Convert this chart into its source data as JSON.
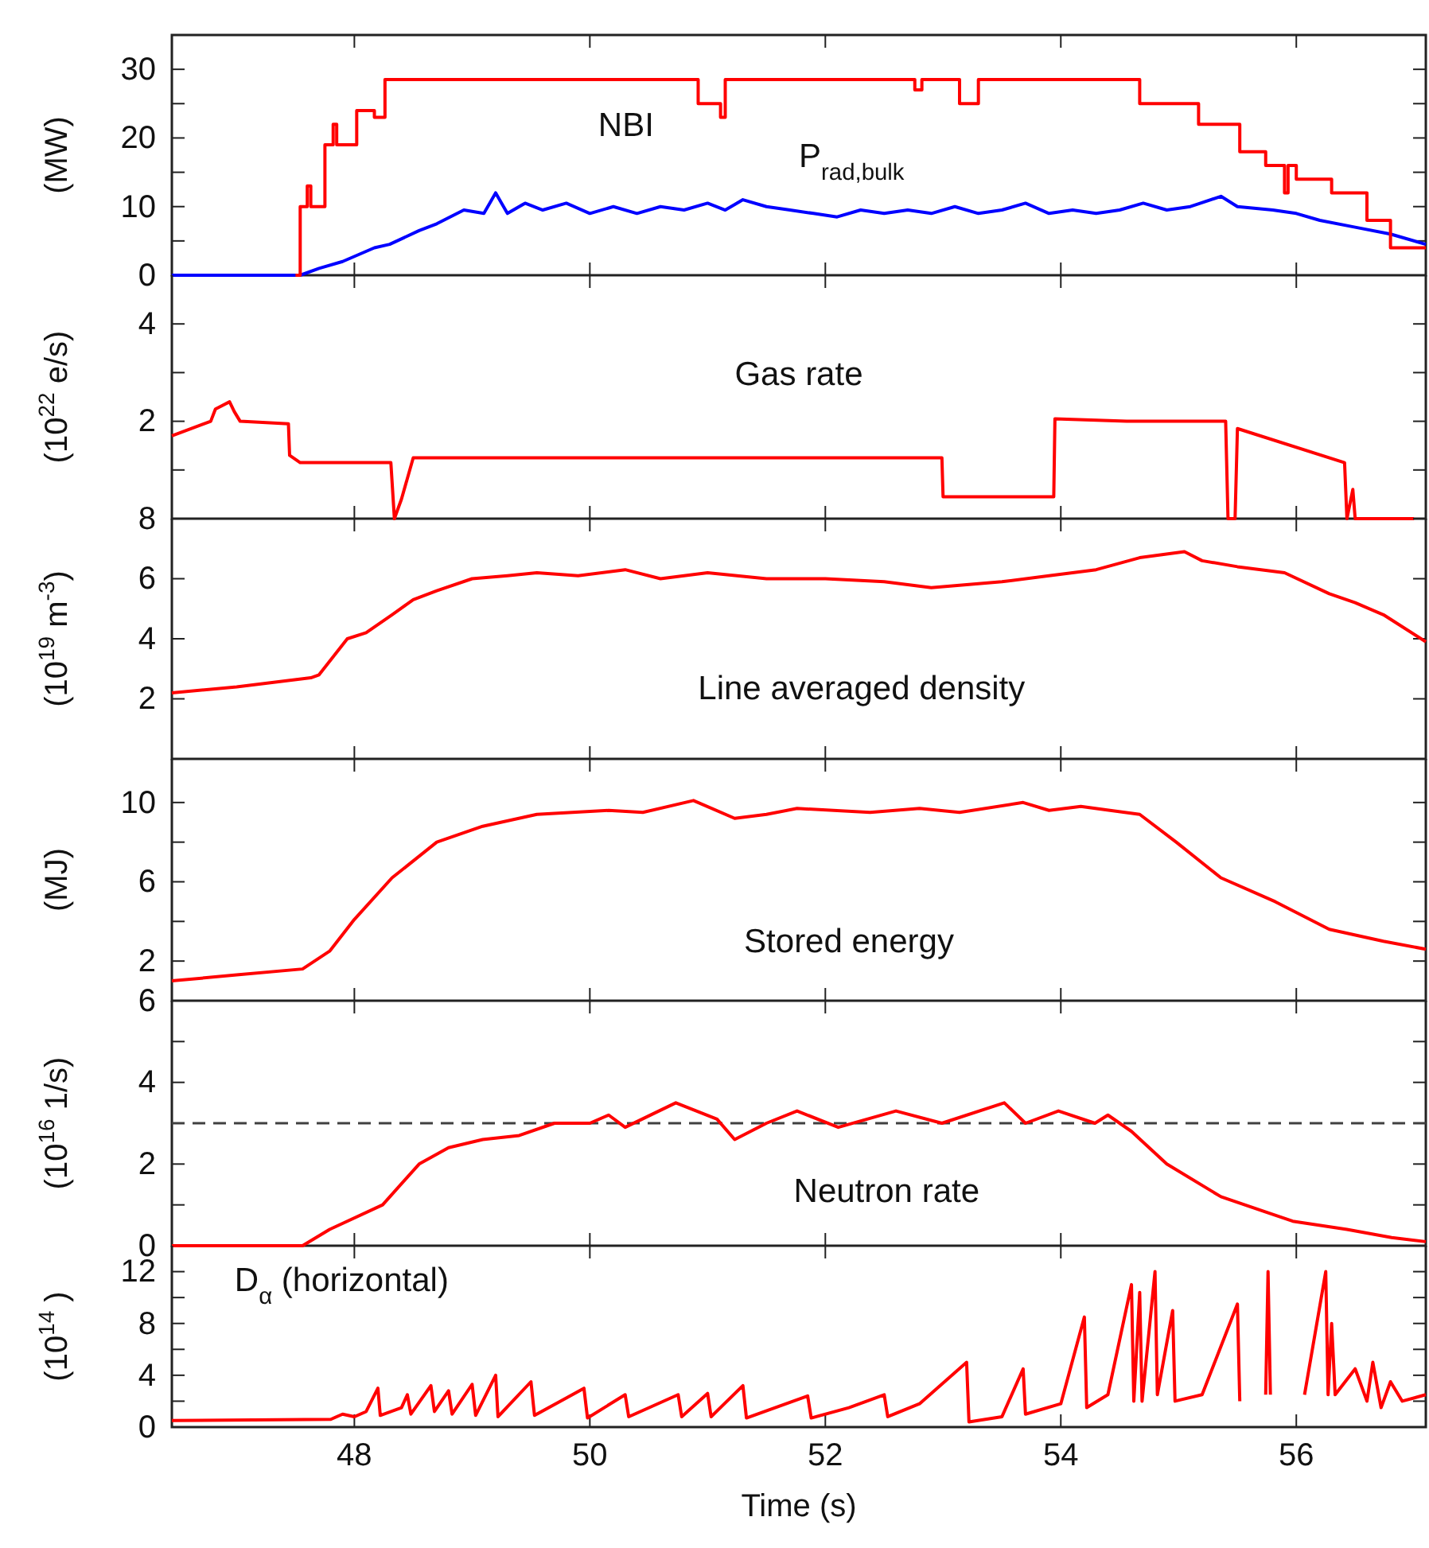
{
  "chart_data": [
    {
      "type": "line",
      "ylabel": "(MW)",
      "xlim": [
        46.45,
        57.1
      ],
      "xticks": [
        48,
        50,
        52,
        54,
        56
      ],
      "ylim": [
        0,
        35
      ],
      "yticks": [
        0,
        {
          "value": 5,
          "label": null
        },
        10,
        {
          "value": 15,
          "label": null
        },
        20,
        {
          "value": 25,
          "label": null
        },
        30
      ],
      "tick_labels": "y",
      "series": [
        {
          "name": "NBI",
          "type": "step",
          "color": "#ff0000",
          "x": [
            47.5,
            47.54,
            47.6,
            47.63,
            47.75,
            47.82,
            47.85,
            48.02,
            48.17,
            48.26,
            50.92,
            51.11,
            51.15,
            52.76,
            52.82,
            53.14,
            53.3,
            54.67,
            55.17,
            55.52,
            55.74,
            55.9,
            55.93,
            56.0,
            56.3,
            56.6,
            56.8,
            57.1
          ],
          "values": [
            0,
            10,
            13,
            10,
            19,
            22,
            19,
            24,
            23,
            28.5,
            25,
            23,
            28.5,
            27,
            28.5,
            25,
            28.5,
            25,
            22,
            18,
            16,
            12,
            16,
            14,
            12,
            8,
            4,
            4
          ]
        },
        {
          "name": "P$_{rad,bulk}$",
          "type": "line",
          "color": "#0000ff",
          "x": [
            46.45,
            47.54,
            47.7,
            47.9,
            48.17,
            48.3,
            48.55,
            48.7,
            48.93,
            49.1,
            49.2,
            49.3,
            49.45,
            49.6,
            49.8,
            50.0,
            50.2,
            50.4,
            50.6,
            50.8,
            51.0,
            51.15,
            51.3,
            51.5,
            51.7,
            51.9,
            52.1,
            52.3,
            52.5,
            52.7,
            52.9,
            53.1,
            53.3,
            53.5,
            53.7,
            53.9,
            54.1,
            54.3,
            54.5,
            54.7,
            54.9,
            55.1,
            55.36,
            55.5,
            55.8,
            56.0,
            56.2,
            56.5,
            56.8,
            57.1
          ],
          "values": [
            0,
            0,
            1,
            2,
            4,
            4.5,
            6.5,
            7.5,
            9.5,
            9,
            12,
            9,
            10.5,
            9.5,
            10.5,
            9,
            10,
            9,
            10,
            9.5,
            10.5,
            9.5,
            11,
            10,
            9.5,
            9,
            8.5,
            9.5,
            9,
            9.5,
            9,
            10,
            9,
            9.5,
            10.5,
            9,
            9.5,
            9,
            9.5,
            10.5,
            9.5,
            10,
            11.5,
            10,
            9.5,
            9,
            8,
            7,
            6,
            4.5
          ]
        }
      ]
    },
    {
      "type": "line",
      "ylabel": "(10$^{22}$ e/s)",
      "xlim": [
        46.45,
        57.1
      ],
      "xticks": [
        48,
        50,
        52,
        54,
        56
      ],
      "ylim": [
        0,
        5
      ],
      "yticks": [
        {
          "value": 0,
          "label": null
        },
        {
          "value": 1,
          "label": null
        },
        2,
        {
          "value": 3,
          "label": null
        },
        4
      ],
      "tick_labels": "y",
      "series": [
        {
          "name": "Gas rate",
          "color": "#ff0000",
          "x": [
            46.45,
            46.78,
            46.82,
            46.94,
            46.98,
            47.03,
            47.44,
            47.45,
            47.54,
            48.31,
            48.34,
            48.4,
            48.5,
            52.99,
            53.0,
            53.94,
            53.95,
            54.56,
            55.4,
            55.42,
            55.48,
            55.5,
            56.41,
            56.43,
            56.48,
            56.5,
            57.0
          ],
          "values": [
            1.7,
            2.0,
            2.25,
            2.4,
            2.2,
            2.0,
            1.95,
            1.3,
            1.15,
            1.15,
            0,
            0.4,
            1.25,
            1.25,
            0.45,
            0.45,
            2.05,
            2.0,
            2.0,
            0,
            0,
            1.85,
            1.15,
            0,
            0.6,
            0,
            0
          ]
        }
      ]
    },
    {
      "type": "line",
      "ylabel": "(10$^{19}$ m$^{-3}$)",
      "xlim": [
        46.45,
        57.1
      ],
      "xticks": [
        48,
        50,
        52,
        54,
        56
      ],
      "ylim": [
        0,
        8
      ],
      "yticks": [
        2,
        4,
        6,
        8
      ],
      "tick_labels": "y",
      "series": [
        {
          "name": "Line averaged density",
          "color": "#ff0000",
          "x": [
            46.45,
            47.0,
            47.63,
            47.7,
            47.94,
            48.1,
            48.32,
            48.5,
            48.7,
            49.0,
            49.3,
            49.55,
            49.9,
            50.3,
            50.6,
            51.0,
            51.5,
            52.0,
            52.5,
            52.9,
            53.2,
            53.5,
            53.9,
            54.3,
            54.67,
            55.05,
            55.2,
            55.5,
            55.9,
            56.28,
            56.5,
            56.74,
            57.1
          ],
          "values": [
            2.2,
            2.4,
            2.7,
            2.8,
            4.0,
            4.2,
            4.8,
            5.3,
            5.6,
            6.0,
            6.1,
            6.2,
            6.1,
            6.3,
            6.0,
            6.2,
            6.0,
            6.0,
            5.9,
            5.7,
            5.8,
            5.9,
            6.1,
            6.3,
            6.7,
            6.9,
            6.6,
            6.4,
            6.2,
            5.5,
            5.2,
            4.8,
            3.9
          ]
        }
      ]
    },
    {
      "type": "line",
      "ylabel": "(MJ)",
      "xlim": [
        46.45,
        57.1
      ],
      "xticks": [
        48,
        50,
        52,
        54,
        56
      ],
      "ylim": [
        0,
        12.2
      ],
      "yticks": [
        2,
        {
          "value": 4,
          "label": null
        },
        6,
        {
          "value": 8,
          "label": null
        },
        10
      ],
      "tick_labels": "y",
      "series": [
        {
          "name": "Stored energy",
          "color": "#ff0000",
          "x": [
            46.45,
            47.0,
            47.56,
            47.79,
            48.0,
            48.32,
            48.7,
            49.09,
            49.55,
            50.16,
            50.45,
            50.88,
            51.23,
            51.5,
            51.76,
            52.38,
            52.8,
            53.14,
            53.68,
            53.9,
            54.17,
            54.67,
            54.98,
            55.36,
            55.82,
            56.28,
            56.74,
            57.1
          ],
          "values": [
            1.0,
            1.3,
            1.6,
            2.5,
            4.1,
            6.2,
            8.0,
            8.8,
            9.4,
            9.6,
            9.5,
            10.1,
            9.2,
            9.4,
            9.7,
            9.5,
            9.7,
            9.5,
            10.0,
            9.6,
            9.8,
            9.4,
            8.0,
            6.2,
            5.0,
            3.6,
            3.0,
            2.6
          ]
        }
      ]
    },
    {
      "type": "line",
      "ylabel": "(10$^{16}$ 1/s)",
      "xlim": [
        46.45,
        57.1
      ],
      "xticks": [
        48,
        50,
        52,
        54,
        56
      ],
      "ylim": [
        0,
        6
      ],
      "yticks": [
        0,
        {
          "value": 1,
          "label": null
        },
        2,
        {
          "value": 3,
          "label": null
        },
        4,
        {
          "value": 5,
          "label": null
        },
        6
      ],
      "tick_labels": "y",
      "ref_lines": [
        {
          "axis": "y",
          "value": 3,
          "color": "#404040",
          "line_style": "dashed"
        }
      ],
      "series": [
        {
          "name": "Neutron rate",
          "color": "#ff0000",
          "x": [
            46.45,
            47.56,
            47.79,
            48.24,
            48.55,
            48.8,
            49.09,
            49.4,
            49.7,
            50.0,
            50.16,
            50.3,
            50.73,
            51.08,
            51.23,
            51.5,
            51.76,
            52.11,
            52.6,
            52.99,
            53.52,
            53.7,
            53.98,
            54.29,
            54.4,
            54.6,
            54.9,
            55.36,
            55.97,
            56.43,
            56.81,
            57.1
          ],
          "values": [
            0,
            0,
            0.4,
            1.0,
            2.0,
            2.4,
            2.6,
            2.7,
            3.0,
            3.0,
            3.2,
            2.9,
            3.5,
            3.1,
            2.6,
            3.0,
            3.3,
            2.9,
            3.3,
            3.0,
            3.5,
            3.0,
            3.3,
            3.0,
            3.2,
            2.8,
            2.0,
            1.2,
            0.6,
            0.4,
            0.2,
            0.1
          ]
        }
      ]
    },
    {
      "type": "line",
      "ylabel": "(10$^{14}$ )",
      "xlabel": "Time (s)",
      "xlim": [
        46.45,
        57.1
      ],
      "xticks": [
        48,
        50,
        52,
        54,
        56
      ],
      "ylim": [
        0,
        14
      ],
      "yticks": [
        0,
        {
          "value": 2,
          "label": null
        },
        4,
        {
          "value": 6,
          "label": null
        },
        8,
        {
          "value": 10,
          "label": null
        },
        12
      ],
      "series": [
        {
          "name": "D$_{α}$ (horizontal)",
          "color": "#ff0000",
          "x": [
            46.45,
            47.8,
            47.9,
            48.0,
            48.1,
            48.2,
            48.22,
            48.4,
            48.45,
            48.48,
            48.65,
            48.68,
            48.8,
            48.83,
            49.0,
            49.03,
            49.2,
            49.22,
            49.5,
            49.53,
            49.75,
            49.95,
            49.98,
            50.3,
            50.33,
            50.75,
            50.78,
            51.0,
            51.03,
            51.3,
            51.33,
            51.85,
            51.88,
            52.2,
            52.5,
            52.53,
            52.8,
            53.2,
            53.22,
            53.5,
            53.68,
            53.7,
            54.0,
            54.2,
            54.22,
            54.4,
            54.6,
            54.62,
            54.67,
            54.69,
            54.8,
            54.82,
            54.95,
            54.97,
            55.2,
            55.5,
            55.52,
            55.7,
            55.74,
            55.76,
            55.78,
            56.0,
            56.05,
            56.07,
            56.25,
            56.27,
            56.3,
            56.33,
            56.5,
            56.6,
            56.65,
            56.72,
            56.8,
            56.9,
            57.1
          ],
          "values": [
            0.5,
            0.6,
            1.0,
            0.8,
            1.2,
            3.0,
            0.9,
            1.5,
            2.5,
            1.0,
            3.2,
            1.2,
            2.8,
            1.0,
            3.3,
            0.9,
            4.0,
            0.8,
            3.5,
            0.9,
            2.0,
            3.0,
            0.7,
            2.5,
            0.8,
            2.5,
            0.8,
            2.6,
            0.8,
            3.2,
            0.7,
            2.4,
            0.7,
            1.5,
            2.5,
            0.8,
            1.8,
            5.0,
            0.4,
            0.8,
            4.5,
            1.0,
            1.8,
            8.5,
            1.5,
            2.5,
            11.0,
            2.0,
            10.4,
            2.0,
            12.0,
            2.5,
            9.0,
            2.0,
            2.5,
            9.5,
            2.0,
            null,
            2.5,
            12.0,
            2.5,
            null,
            null,
            2.5,
            12.0,
            2.5,
            8.0,
            2.5,
            4.5,
            2.0,
            5.0,
            1.5,
            3.5,
            2.0,
            2.5
          ]
        }
      ]
    }
  ]
}
